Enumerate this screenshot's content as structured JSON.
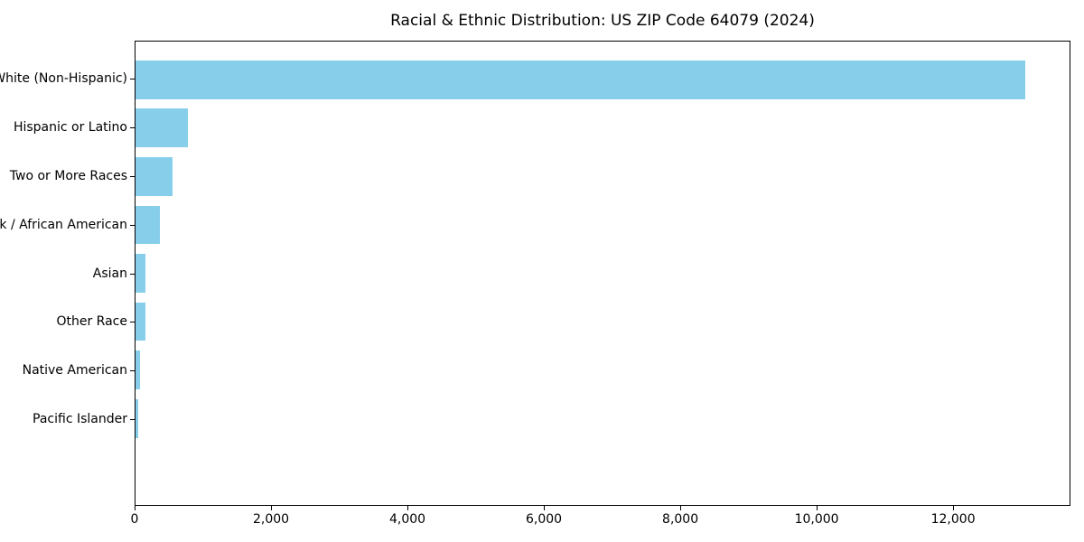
{
  "chart_data": {
    "type": "bar",
    "orientation": "horizontal",
    "title": "Racial & Ethnic Distribution: US ZIP Code 64079 (2024)",
    "xlabel": "",
    "ylabel": "",
    "categories": [
      "White (Non-Hispanic)",
      "Hispanic or Latino",
      "Two or More Races",
      "Black / African American",
      "Asian",
      "Other Race",
      "Native American",
      "Pacific Islander"
    ],
    "values": [
      13070,
      765,
      550,
      355,
      150,
      140,
      70,
      40
    ],
    "xlim": [
      0,
      13720
    ],
    "x_ticks": [
      0,
      2000,
      4000,
      6000,
      8000,
      10000,
      12000
    ],
    "x_tick_labels": [
      "0",
      "2,000",
      "4,000",
      "6,000",
      "8,000",
      "10,000",
      "12,000"
    ],
    "bar_color": "#87CEEB",
    "grid": false,
    "legend_position": "none"
  }
}
